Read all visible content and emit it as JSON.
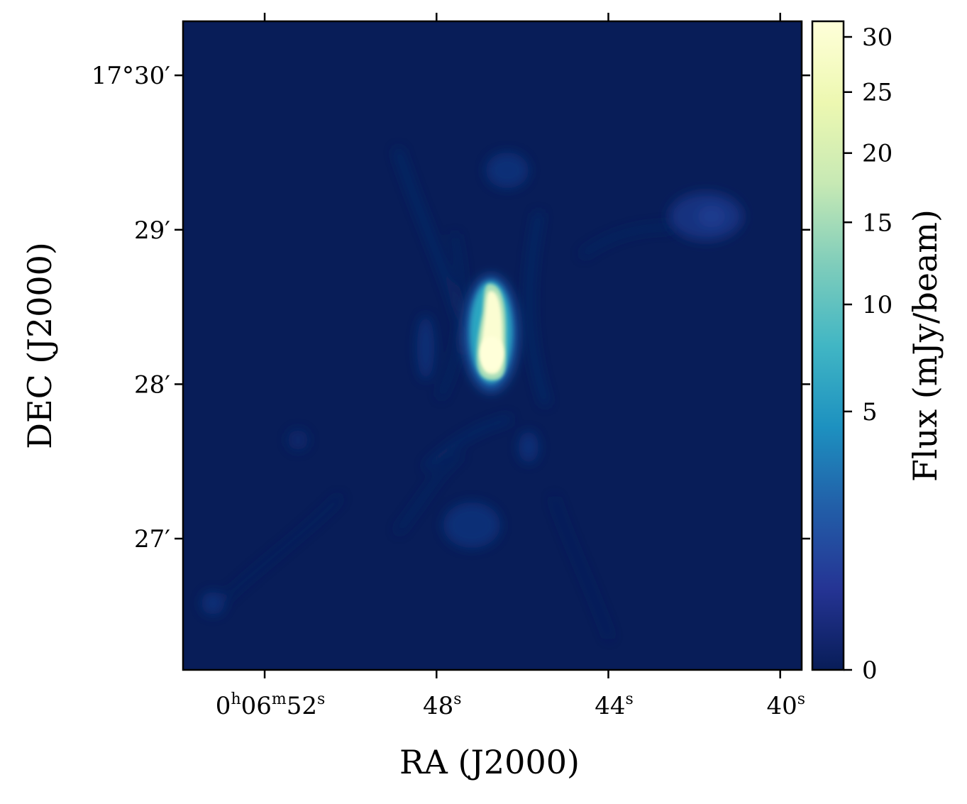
{
  "chart_data": {
    "type": "heatmap",
    "title": "",
    "xlabel": "RA (J2000)",
    "ylabel": "DEC (J2000)",
    "x_ticks": [
      {
        "main": "0",
        "parts": [
          [
            "h",
            "06"
          ],
          [
            "m",
            "52"
          ],
          [
            "s",
            ""
          ]
        ],
        "ra_seconds": 52
      },
      {
        "main": "48",
        "parts": [
          [
            "s",
            ""
          ]
        ],
        "ra_seconds": 48
      },
      {
        "main": "44",
        "parts": [
          [
            "s",
            ""
          ]
        ],
        "ra_seconds": 44
      },
      {
        "main": "40",
        "parts": [
          [
            "s",
            ""
          ]
        ],
        "ra_seconds": 40
      }
    ],
    "x_ticklabels": [
      "0h06m52s",
      "48s",
      "44s",
      "40s"
    ],
    "y_ticklabels": [
      "17°30′",
      "29′",
      "28′",
      "27′"
    ],
    "y_tick_arcmin": [
      30,
      29,
      28,
      27
    ],
    "ra_range_seconds": [
      53.9,
      39.5
    ],
    "dec_range_arcmin": [
      26.15,
      30.35
    ],
    "colorbar": {
      "label": "Flux (mJy/beam)",
      "ticks": [
        0,
        5,
        10,
        15,
        20,
        25,
        30
      ],
      "range": [
        0,
        31.5
      ],
      "scale": "sqrt",
      "colormap": "YlGnBu",
      "colors": [
        "#081d58",
        "#253494",
        "#225ea8",
        "#1d91c0",
        "#41b6c4",
        "#7fcdbb",
        "#c7e9b4",
        "#edf8b1",
        "#ffffd9"
      ]
    },
    "sources": [
      {
        "label": "bright compact source",
        "ra_s": 47.35,
        "dec_arcmin": 28.35,
        "peak_mjy_beam": 31
      },
      {
        "label": "faint source",
        "ra_s": 41.5,
        "dec_arcmin": 29.07,
        "peak_mjy_beam": 0.5
      }
    ],
    "grid": false
  }
}
